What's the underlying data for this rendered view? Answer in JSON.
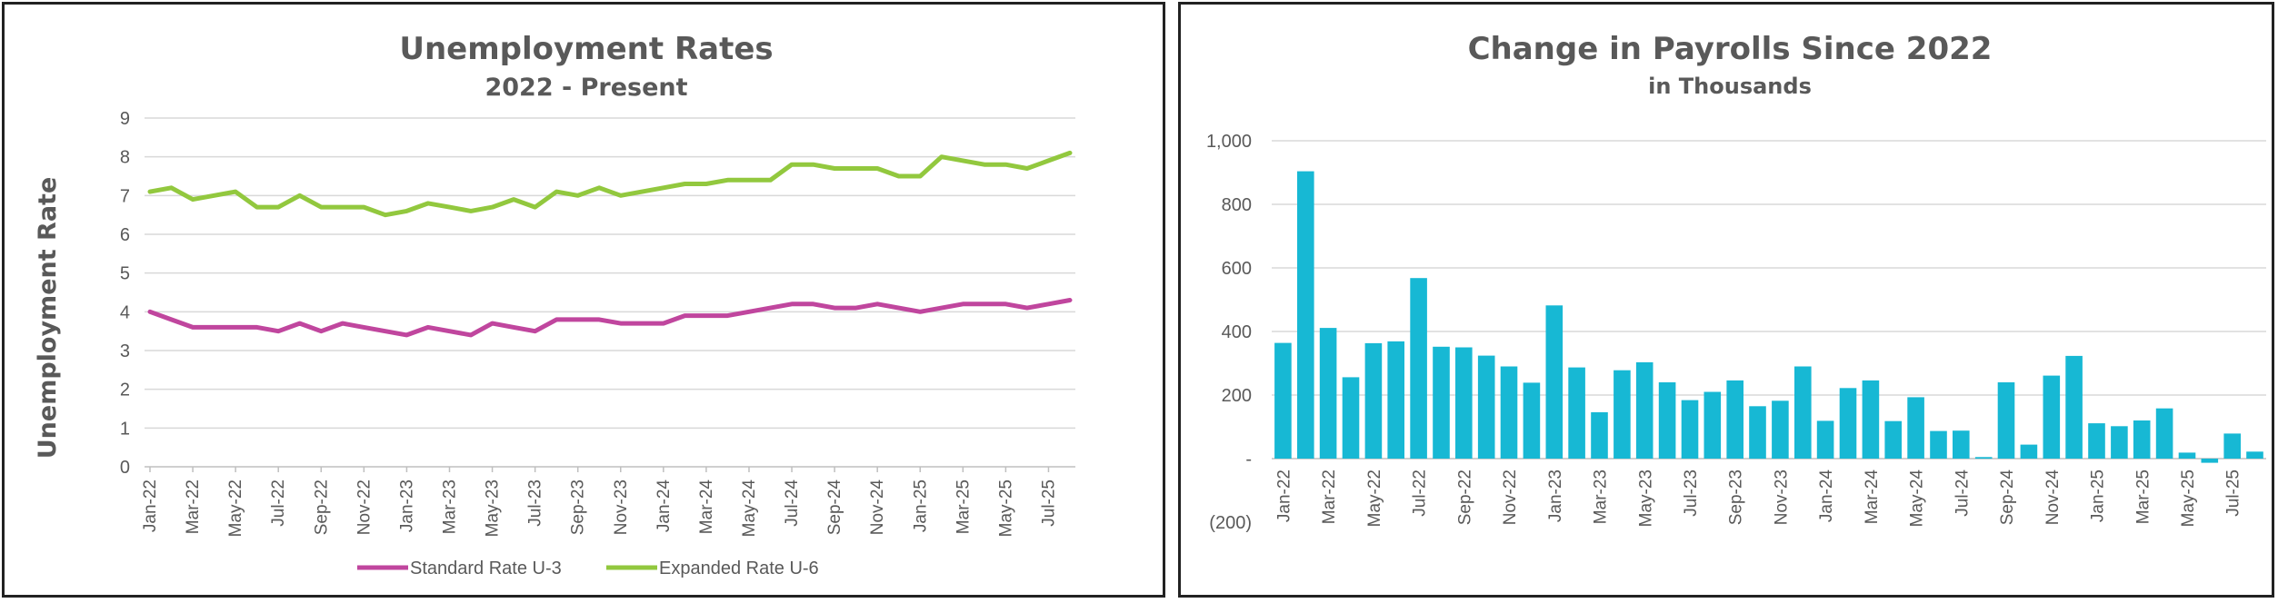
{
  "chart_data": [
    {
      "type": "line",
      "title": "Unemployment Rates",
      "subtitle": "2022 - Present",
      "ylabel": "Unemployment Rate",
      "ylim": [
        0,
        9
      ],
      "yticks": [
        "0",
        "1",
        "2",
        "3",
        "4",
        "5",
        "6",
        "7",
        "8",
        "9"
      ],
      "grid": true,
      "legend_position": "bottom",
      "categories": [
        "Jan-22",
        "Feb-22",
        "Mar-22",
        "Apr-22",
        "May-22",
        "Jun-22",
        "Jul-22",
        "Aug-22",
        "Sep-22",
        "Oct-22",
        "Nov-22",
        "Dec-22",
        "Jan-23",
        "Feb-23",
        "Mar-23",
        "Apr-23",
        "May-23",
        "Jun-23",
        "Jul-23",
        "Aug-23",
        "Sep-23",
        "Oct-23",
        "Nov-23",
        "Dec-23",
        "Jan-24",
        "Feb-24",
        "Mar-24",
        "Apr-24",
        "May-24",
        "Jun-24",
        "Jul-24",
        "Aug-24",
        "Sep-24",
        "Oct-24",
        "Nov-24",
        "Dec-24",
        "Jan-25",
        "Feb-25",
        "Mar-25",
        "Apr-25",
        "May-25",
        "Jun-25",
        "Jul-25",
        "Aug-25"
      ],
      "x_tick_labels": [
        "Jan-22",
        "Mar-22",
        "May-22",
        "Jul-22",
        "Sep-22",
        "Nov-22",
        "Jan-23",
        "Mar-23",
        "May-23",
        "Jul-23",
        "Sep-23",
        "Nov-23",
        "Jan-24",
        "Mar-24",
        "May-24",
        "Jul-24",
        "Sep-24",
        "Nov-24",
        "Jan-25",
        "Mar-25",
        "May-25",
        "Jul-25"
      ],
      "series": [
        {
          "name": "Standard Rate U-3",
          "color": "#c0469e",
          "values": [
            4.0,
            3.8,
            3.6,
            3.6,
            3.6,
            3.6,
            3.5,
            3.7,
            3.5,
            3.7,
            3.6,
            3.5,
            3.4,
            3.6,
            3.5,
            3.4,
            3.7,
            3.6,
            3.5,
            3.8,
            3.8,
            3.8,
            3.7,
            3.7,
            3.7,
            3.9,
            3.9,
            3.9,
            4.0,
            4.1,
            4.2,
            4.2,
            4.1,
            4.1,
            4.2,
            4.1,
            4.0,
            4.1,
            4.2,
            4.2,
            4.2,
            4.1,
            4.2,
            4.3
          ]
        },
        {
          "name": "Expanded Rate U-6",
          "color": "#92c83e",
          "values": [
            7.1,
            7.2,
            6.9,
            7.0,
            7.1,
            6.7,
            6.7,
            7.0,
            6.7,
            6.7,
            6.7,
            6.5,
            6.6,
            6.8,
            6.7,
            6.6,
            6.7,
            6.9,
            6.7,
            7.1,
            7.0,
            7.2,
            7.0,
            7.1,
            7.2,
            7.3,
            7.3,
            7.4,
            7.4,
            7.4,
            7.8,
            7.8,
            7.7,
            7.7,
            7.7,
            7.5,
            7.5,
            8.0,
            7.9,
            7.8,
            7.8,
            7.7,
            7.9,
            8.1
          ]
        }
      ]
    },
    {
      "type": "bar",
      "title": "Change in Payrolls Since 2022",
      "subtitle": "in Thousands",
      "ylim": [
        -200,
        1000
      ],
      "yticks": [
        "(200)",
        "-",
        "200",
        "400",
        "600",
        "800",
        "1,000"
      ],
      "grid": true,
      "color": "#17b8d4",
      "categories": [
        "Jan-22",
        "Feb-22",
        "Mar-22",
        "Apr-22",
        "May-22",
        "Jun-22",
        "Jul-22",
        "Aug-22",
        "Sep-22",
        "Oct-22",
        "Nov-22",
        "Dec-22",
        "Jan-23",
        "Feb-23",
        "Mar-23",
        "Apr-23",
        "May-23",
        "Jun-23",
        "Jul-23",
        "Aug-23",
        "Sep-23",
        "Oct-23",
        "Nov-23",
        "Dec-23",
        "Jan-24",
        "Feb-24",
        "Mar-24",
        "Apr-24",
        "May-24",
        "Jun-24",
        "Jul-24",
        "Aug-24",
        "Sep-24",
        "Oct-24",
        "Nov-24",
        "Dec-24",
        "Jan-25",
        "Feb-25",
        "Mar-25",
        "Apr-25",
        "May-25",
        "Jun-25",
        "Jul-25",
        "Aug-25"
      ],
      "x_tick_labels": [
        "Jan-22",
        "Mar-22",
        "May-22",
        "Jul-22",
        "Sep-22",
        "Nov-22",
        "Jan-23",
        "Mar-23",
        "May-23",
        "Jul-23",
        "Sep-23",
        "Nov-23",
        "Jan-24",
        "Mar-24",
        "May-24",
        "Jul-24",
        "Sep-24",
        "Nov-24",
        "Jan-25",
        "Mar-25",
        "May-25",
        "Jul-25"
      ],
      "values": [
        364,
        904,
        411,
        256,
        363,
        369,
        568,
        352,
        350,
        324,
        290,
        239,
        482,
        287,
        146,
        278,
        303,
        240,
        184,
        210,
        246,
        165,
        182,
        290,
        119,
        222,
        246,
        118,
        193,
        87,
        88,
        5,
        240,
        44,
        261,
        323,
        111,
        102,
        120,
        158,
        19,
        -13,
        79,
        22
      ]
    }
  ]
}
